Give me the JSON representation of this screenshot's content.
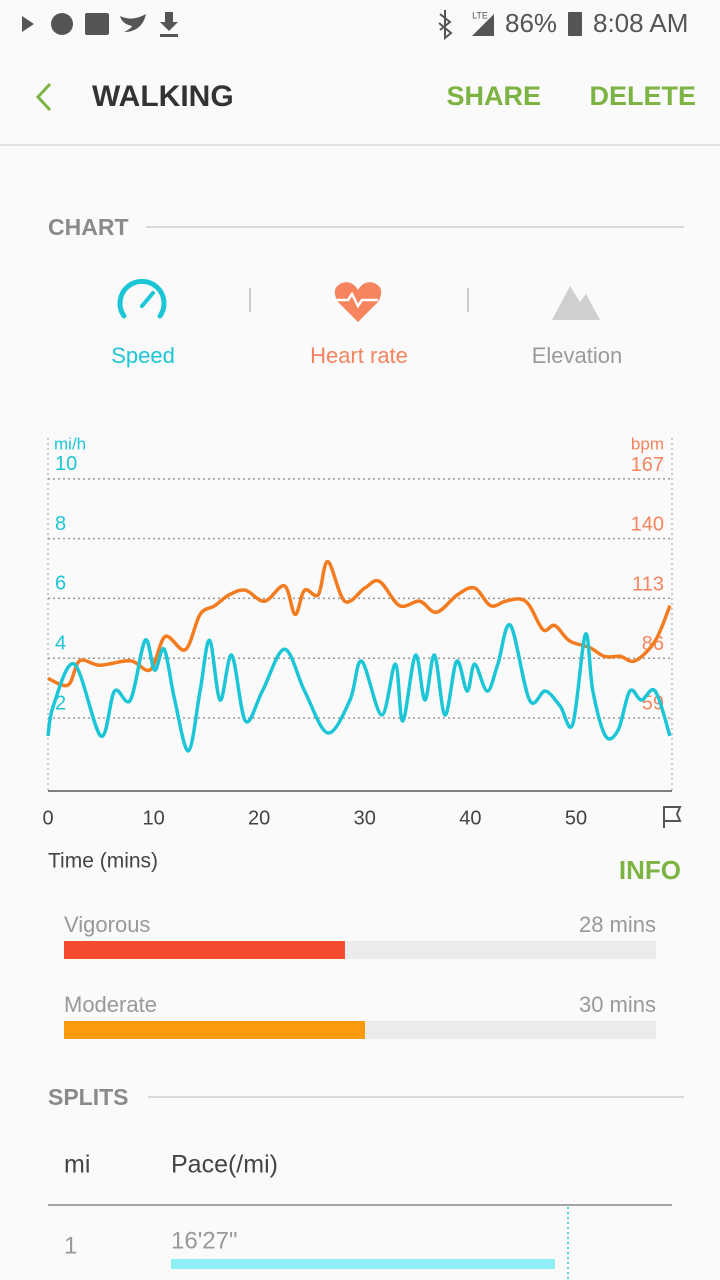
{
  "status_bar": {
    "network": "LTE",
    "battery": "86%",
    "time": "8:08 AM"
  },
  "header": {
    "title": "WALKING",
    "share": "SHARE",
    "delete": "DELETE"
  },
  "chart_section": {
    "title": "CHART",
    "elevation_tab": "Elevation"
  },
  "chart_data": {
    "type": "line",
    "y_unit": "mi/h",
    "y2_unit": "bpm",
    "xlabel": "Time (mins)",
    "xlim": [
      0,
      59
    ],
    "xticks": [
      0,
      10,
      20,
      30,
      40,
      50
    ],
    "ylim": [
      0,
      11
    ],
    "yticks": [
      2,
      4,
      6,
      8,
      10
    ],
    "y2lim": [
      32,
      181
    ],
    "y2ticks": [
      59,
      86,
      113,
      140,
      167
    ],
    "grid": true,
    "series": [
      {
        "name": "Speed",
        "color": "#1cc6d6",
        "axis": "y",
        "x": [
          0,
          0.5,
          2.5,
          5,
          6.3,
          7.8,
          9.2,
          10.1,
          11,
          12,
          13.3,
          14.4,
          15.3,
          16.3,
          17.4,
          18.7,
          20.3,
          22.4,
          24.3,
          26.5,
          28.6,
          29.7,
          31.6,
          32.9,
          33.6,
          34.8,
          35.7,
          36.6,
          37.6,
          38.7,
          39.7,
          40.4,
          41.6,
          42.6,
          43.8,
          45.6,
          47.1,
          48.5,
          49.7,
          50.9,
          51.6,
          52.8,
          54,
          55.1,
          56.2,
          57.5,
          58.9
        ],
        "values": [
          1.4,
          2.4,
          3.8,
          1.4,
          2.9,
          2.6,
          4.6,
          3.6,
          4.3,
          2.6,
          0.9,
          2.9,
          4.6,
          2.6,
          4.1,
          1.9,
          2.9,
          4.3,
          2.9,
          1.5,
          2.6,
          3.9,
          2.1,
          3.8,
          1.9,
          4.1,
          2.6,
          4.1,
          2.1,
          3.9,
          2.9,
          3.8,
          2.9,
          3.8,
          5.1,
          2.6,
          2.9,
          2.4,
          1.8,
          4.8,
          2.9,
          1.4,
          1.6,
          2.9,
          2.6,
          2.9,
          1.4
        ]
      },
      {
        "name": "Heart rate",
        "color": "#f47c20",
        "axis": "y2",
        "x": [
          0,
          1.9,
          3.0,
          4.9,
          7.8,
          9.7,
          11.1,
          13.0,
          14.4,
          15.8,
          17.2,
          18.7,
          20.5,
          22.4,
          23.4,
          24.3,
          25.6,
          26.5,
          28.1,
          30.0,
          31.4,
          33.3,
          35.2,
          36.8,
          38.8,
          40.4,
          41.9,
          43.3,
          44.7,
          45.6,
          46.9,
          48.0,
          49.4,
          51.3,
          52.7,
          54.2,
          55.6,
          57.5,
          58.9
        ],
        "values": [
          77,
          74,
          85,
          83,
          85,
          81,
          96,
          90,
          106,
          110,
          115,
          117,
          112,
          119,
          106,
          117,
          115,
          130,
          112,
          118,
          121,
          110,
          112,
          107,
          115,
          118,
          110,
          112,
          113,
          110,
          99,
          101,
          94,
          91,
          87,
          87,
          85,
          94,
          110
        ]
      }
    ]
  },
  "info": {
    "title": "INFO",
    "rows": [
      {
        "label": "Vigorous",
        "value": 28,
        "value_label": "28 mins",
        "color": "#f44a2e"
      },
      {
        "label": "Moderate",
        "value": 30,
        "value_label": "30 mins",
        "color": "#fb9a0c"
      }
    ]
  },
  "splits": {
    "title": "SPLITS",
    "columns": [
      "mi",
      "Pace(/mi)"
    ],
    "rows": [
      [
        "1",
        "16'27\""
      ]
    ]
  }
}
